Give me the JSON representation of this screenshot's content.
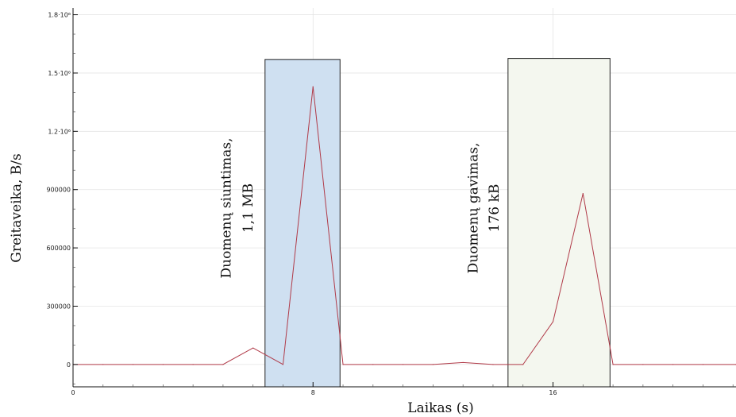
{
  "chart_data": {
    "type": "line",
    "xlabel": "Laikas (s)",
    "ylabel": "Greitaveika, B/s",
    "xlim": [
      0,
      22.1
    ],
    "ylim": [
      -115000,
      1835000
    ],
    "x_ticks": [
      {
        "value": 0,
        "label": "0"
      },
      {
        "value": 8,
        "label": "8"
      },
      {
        "value": 16,
        "label": "16"
      }
    ],
    "y_ticks": [
      {
        "value": 0,
        "label": "0"
      },
      {
        "value": 300000,
        "label": "300000"
      },
      {
        "value": 600000,
        "label": "600000"
      },
      {
        "value": 900000,
        "label": "900000"
      },
      {
        "value": 1200000,
        "label": "1.2·10⁶"
      },
      {
        "value": 1500000,
        "label": "1.5·10⁶"
      },
      {
        "value": 1800000,
        "label": "1.8·10⁶"
      }
    ],
    "grid": true,
    "series": [
      {
        "color": "#b03a48",
        "x": [
          0,
          1,
          2,
          3,
          4,
          5,
          6,
          7,
          8,
          9,
          10,
          11,
          12,
          13,
          14,
          15,
          16,
          17,
          18,
          19,
          20,
          21,
          22.1
        ],
        "y": [
          0,
          0,
          0,
          0,
          0,
          0,
          85000,
          0,
          1430000,
          0,
          0,
          0,
          0,
          10000,
          0,
          0,
          220000,
          880000,
          0,
          0,
          0,
          0,
          0
        ]
      }
    ],
    "highlights": [
      {
        "x_start": 6.4,
        "x_end": 8.9,
        "y_top": 1570000,
        "fill": "#cfe0f1",
        "label_lines": [
          "Duomenų siuntimas,",
          "1,1 MB"
        ],
        "label_x": [
          5.25,
          5.98
        ]
      },
      {
        "x_start": 14.5,
        "x_end": 17.9,
        "y_top": 1575000,
        "fill": "#f4f7ef",
        "label_lines": [
          "Duomenų gavimas,",
          "176 kB"
        ],
        "label_x": [
          13.48,
          14.18
        ]
      }
    ]
  }
}
